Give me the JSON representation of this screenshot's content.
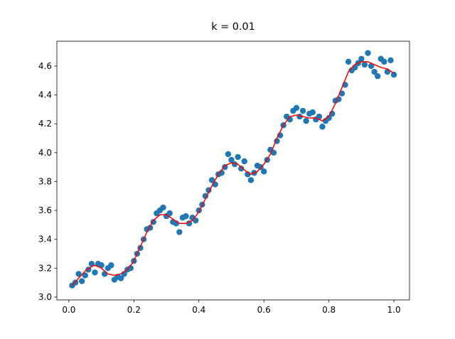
{
  "chart_data": {
    "type": "scatter",
    "title": "k = 0.01",
    "xlim": [
      -0.037,
      1.048
    ],
    "ylim": [
      2.98,
      4.772
    ],
    "xticks": [
      {
        "value": 0,
        "label": "0.0"
      },
      0.2,
      0.4,
      0.6,
      0.8,
      {
        "value": 1,
        "label": "1.0"
      }
    ],
    "yticks": [
      {
        "value": 3,
        "label": "3.0"
      },
      3.2,
      3.4,
      3.6,
      3.8,
      {
        "value": 4,
        "label": "4.0"
      },
      4.2,
      4.4,
      4.6
    ],
    "series": [
      {
        "type": "scatter",
        "color": "#1f77b4",
        "x": [
          0.01,
          0.02,
          0.03,
          0.04,
          0.05,
          0.06,
          0.07,
          0.08,
          0.09,
          0.1,
          0.11,
          0.12,
          0.13,
          0.14,
          0.15,
          0.16,
          0.17,
          0.18,
          0.19,
          0.2,
          0.21,
          0.22,
          0.23,
          0.24,
          0.25,
          0.26,
          0.27,
          0.28,
          0.29,
          0.3,
          0.31,
          0.32,
          0.33,
          0.34,
          0.35,
          0.36,
          0.37,
          0.38,
          0.39,
          0.4,
          0.41,
          0.42,
          0.43,
          0.44,
          0.45,
          0.46,
          0.47,
          0.48,
          0.49,
          0.5,
          0.51,
          0.52,
          0.53,
          0.54,
          0.55,
          0.56,
          0.57,
          0.58,
          0.59,
          0.6,
          0.61,
          0.62,
          0.63,
          0.64,
          0.65,
          0.66,
          0.67,
          0.68,
          0.69,
          0.7,
          0.71,
          0.72,
          0.73,
          0.74,
          0.75,
          0.76,
          0.77,
          0.78,
          0.79,
          0.8,
          0.81,
          0.82,
          0.83,
          0.84,
          0.85,
          0.86,
          0.87,
          0.88,
          0.89,
          0.9,
          0.91,
          0.92,
          0.93,
          0.94,
          0.95,
          0.96,
          0.97,
          0.98,
          0.99,
          1.0
        ],
        "values": [
          3.08,
          3.1,
          3.16,
          3.11,
          3.15,
          3.19,
          3.23,
          3.17,
          3.23,
          3.22,
          3.16,
          3.2,
          3.22,
          3.12,
          3.14,
          3.13,
          3.16,
          3.19,
          3.2,
          3.25,
          3.3,
          3.34,
          3.4,
          3.47,
          3.48,
          3.52,
          3.58,
          3.6,
          3.62,
          3.56,
          3.58,
          3.52,
          3.51,
          3.45,
          3.55,
          3.56,
          3.51,
          3.55,
          3.53,
          3.6,
          3.64,
          3.7,
          3.74,
          3.81,
          3.78,
          3.85,
          3.86,
          3.9,
          3.99,
          3.95,
          3.92,
          3.97,
          3.89,
          3.94,
          3.85,
          3.81,
          3.86,
          3.91,
          3.9,
          3.87,
          3.95,
          4.02,
          4.0,
          4.08,
          4.12,
          4.19,
          4.25,
          4.23,
          4.29,
          4.31,
          4.25,
          4.29,
          4.22,
          4.27,
          4.28,
          4.23,
          4.25,
          4.18,
          4.22,
          4.24,
          4.27,
          4.36,
          4.37,
          4.41,
          4.47,
          4.63,
          4.57,
          4.59,
          4.62,
          4.65,
          4.61,
          4.69,
          4.6,
          4.56,
          4.53,
          4.65,
          4.63,
          4.56,
          4.64,
          4.54
        ]
      },
      {
        "type": "line",
        "color": "#ff0000",
        "x": [
          0.01,
          0.03,
          0.05,
          0.07,
          0.08,
          0.1,
          0.12,
          0.14,
          0.16,
          0.18,
          0.2,
          0.22,
          0.24,
          0.26,
          0.28,
          0.3,
          0.32,
          0.34,
          0.36,
          0.38,
          0.4,
          0.42,
          0.44,
          0.46,
          0.48,
          0.5,
          0.52,
          0.54,
          0.56,
          0.58,
          0.6,
          0.62,
          0.64,
          0.66,
          0.68,
          0.7,
          0.72,
          0.74,
          0.76,
          0.78,
          0.8,
          0.82,
          0.84,
          0.86,
          0.88,
          0.9,
          0.92,
          0.94,
          0.96,
          0.98,
          1.0
        ],
        "values": [
          3.08,
          3.13,
          3.18,
          3.21,
          3.22,
          3.2,
          3.16,
          3.15,
          3.16,
          3.19,
          3.25,
          3.35,
          3.45,
          3.53,
          3.57,
          3.57,
          3.54,
          3.51,
          3.51,
          3.53,
          3.59,
          3.68,
          3.77,
          3.85,
          3.91,
          3.93,
          3.92,
          3.88,
          3.85,
          3.87,
          3.92,
          3.99,
          4.1,
          4.19,
          4.25,
          4.26,
          4.25,
          4.24,
          4.24,
          4.22,
          4.25,
          4.34,
          4.45,
          4.56,
          4.61,
          4.63,
          4.63,
          4.61,
          4.59,
          4.58,
          4.55
        ]
      }
    ]
  }
}
